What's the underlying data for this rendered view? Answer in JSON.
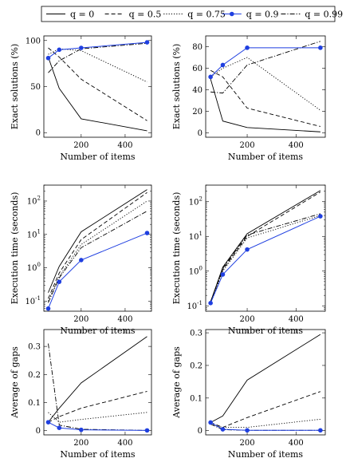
{
  "legend": {
    "placement": "top-center",
    "entries": [
      {
        "label": "q = 0",
        "style": "solid",
        "marker": "none",
        "color": "#000000"
      },
      {
        "label": "q = 0.5",
        "style": "dashed",
        "marker": "none",
        "color": "#000000"
      },
      {
        "label": "q = 0.75",
        "style": "dotted",
        "marker": "none",
        "color": "#000000"
      },
      {
        "label": "q = 0.9",
        "style": "solid",
        "marker": "circle",
        "color": "#1f3fe0"
      },
      {
        "label": "q = 0.99",
        "style": "dashdot",
        "marker": "none",
        "color": "#000000"
      }
    ]
  },
  "chart_data": [
    {
      "type": "line",
      "row": 0,
      "col": 0,
      "scale": "linear",
      "xlabel": "Number of items",
      "ylabel": "Exact solutions (%)",
      "xlim": [
        30,
        520
      ],
      "ylim": [
        -5,
        105
      ],
      "xticks": [
        200,
        400
      ],
      "xtick_labels": [
        "200",
        "400"
      ],
      "yticks": [
        0,
        50,
        100
      ],
      "ytick_labels": [
        "0",
        "50",
        "100"
      ],
      "x": [
        50,
        100,
        200,
        500
      ],
      "series": [
        {
          "name": "q = 0",
          "values": [
            82,
            48,
            15,
            2
          ]
        },
        {
          "name": "q = 0.5",
          "values": [
            92,
            82,
            58,
            13
          ]
        },
        {
          "name": "q = 0.75",
          "values": [
            85,
            91,
            89,
            55
          ]
        },
        {
          "name": "q = 0.9",
          "values": [
            81,
            90,
            92,
            98
          ]
        },
        {
          "name": "q = 0.99",
          "values": [
            65,
            78,
            91,
            97
          ]
        }
      ]
    },
    {
      "type": "line",
      "row": 0,
      "col": 1,
      "scale": "linear",
      "xlabel": "Number of items",
      "ylabel": "Exact solutions (%)",
      "xlim": [
        30,
        520
      ],
      "ylim": [
        -4,
        90
      ],
      "xticks": [
        200,
        400
      ],
      "xtick_labels": [
        "200",
        "400"
      ],
      "yticks": [
        0,
        20,
        40,
        60,
        80
      ],
      "ytick_labels": [
        "0",
        "20",
        "40",
        "60",
        "80"
      ],
      "x": [
        50,
        100,
        200,
        500
      ],
      "series": [
        {
          "name": "q = 0",
          "values": [
            50,
            11,
            5,
            1
          ]
        },
        {
          "name": "q = 0.5",
          "values": [
            58,
            52,
            23,
            6
          ]
        },
        {
          "name": "q = 0.75",
          "values": [
            52,
            60,
            70,
            21
          ]
        },
        {
          "name": "q = 0.9",
          "values": [
            52,
            63,
            79,
            79
          ]
        },
        {
          "name": "q = 0.99",
          "values": [
            38,
            37,
            63,
            85
          ]
        }
      ]
    },
    {
      "type": "line",
      "row": 1,
      "col": 0,
      "scale": "log",
      "xlabel": "Number of items",
      "ylabel": "Execution time (seconds)",
      "xlim": [
        30,
        520
      ],
      "ylim": [
        0.05,
        300
      ],
      "xticks": [
        200,
        400
      ],
      "xtick_labels": [
        "200",
        "400"
      ],
      "yticks": [
        0.1,
        1,
        10,
        100
      ],
      "ytick_labels": [
        "10^-1",
        "10^0",
        "10^1",
        "10^2"
      ],
      "x": [
        50,
        100,
        200,
        500
      ],
      "series": [
        {
          "name": "q = 0",
          "values": [
            0.18,
            1.1,
            12,
            220
          ]
        },
        {
          "name": "q = 0.5",
          "values": [
            0.12,
            0.7,
            7,
            180
          ]
        },
        {
          "name": "q = 0.75",
          "values": [
            0.1,
            0.55,
            5,
            100
          ]
        },
        {
          "name": "q = 0.9",
          "values": [
            0.06,
            0.38,
            1.7,
            11
          ]
        },
        {
          "name": "q = 0.99",
          "values": [
            0.09,
            0.5,
            4,
            50
          ]
        }
      ]
    },
    {
      "type": "line",
      "row": 1,
      "col": 1,
      "scale": "log",
      "xlabel": "Number of items",
      "ylabel": "Execution time (seconds)",
      "xlim": [
        30,
        520
      ],
      "ylim": [
        0.07,
        300
      ],
      "xticks": [
        200,
        400
      ],
      "xtick_labels": [
        "200",
        "400"
      ],
      "yticks": [
        0.1,
        1,
        10,
        100
      ],
      "ytick_labels": [
        "10^-1",
        "10^0",
        "10^1",
        "10^2"
      ],
      "x": [
        50,
        100,
        200,
        500
      ],
      "series": [
        {
          "name": "q = 0",
          "values": [
            0.13,
            1.3,
            12,
            210
          ]
        },
        {
          "name": "q = 0.5",
          "values": [
            0.13,
            1.1,
            10,
            190
          ]
        },
        {
          "name": "q = 0.75",
          "values": [
            0.12,
            1.0,
            9,
            40
          ]
        },
        {
          "name": "q = 0.9",
          "values": [
            0.12,
            0.8,
            4.2,
            38
          ]
        },
        {
          "name": "q = 0.99",
          "values": [
            0.13,
            1.2,
            11,
            45
          ]
        }
      ]
    },
    {
      "type": "line",
      "row": 2,
      "col": 0,
      "scale": "linear",
      "xlabel": "Number of items",
      "ylabel": "Average of gaps",
      "xlim": [
        30,
        520
      ],
      "ylim": [
        -0.015,
        0.36
      ],
      "xticks": [
        200,
        400
      ],
      "xtick_labels": [
        "200",
        "400"
      ],
      "yticks": [
        0,
        0.1,
        0.2,
        0.3
      ],
      "ytick_labels": [
        "0",
        "0.1",
        "0.2",
        "0.3"
      ],
      "x": [
        50,
        100,
        200,
        500
      ],
      "series": [
        {
          "name": "q = 0",
          "values": [
            0.03,
            0.08,
            0.17,
            0.335
          ]
        },
        {
          "name": "q = 0.5",
          "values": [
            0.03,
            0.05,
            0.08,
            0.14
          ]
        },
        {
          "name": "q = 0.75",
          "values": [
            0.065,
            0.03,
            0.04,
            0.065
          ]
        },
        {
          "name": "q = 0.9",
          "values": [
            0.03,
            0.01,
            0.003,
            0.001
          ]
        },
        {
          "name": "q = 0.99",
          "values": [
            0.31,
            0.02,
            0.005,
            0.001
          ]
        }
      ]
    },
    {
      "type": "line",
      "row": 2,
      "col": 1,
      "scale": "linear",
      "xlabel": "Number of items",
      "ylabel": "Average of gaps",
      "xlim": [
        30,
        520
      ],
      "ylim": [
        -0.013,
        0.31
      ],
      "xticks": [
        200,
        400
      ],
      "xtick_labels": [
        "200",
        "400"
      ],
      "yticks": [
        0,
        0.1,
        0.2,
        0.3
      ],
      "ytick_labels": [
        "0",
        "0.1",
        "0.2",
        "0.3"
      ],
      "x": [
        50,
        100,
        200,
        500
      ],
      "series": [
        {
          "name": "q = 0",
          "values": [
            0.025,
            0.045,
            0.155,
            0.295
          ]
        },
        {
          "name": "q = 0.5",
          "values": [
            0.025,
            0.01,
            0.04,
            0.12
          ]
        },
        {
          "name": "q = 0.75",
          "values": [
            0.02,
            0.01,
            0.01,
            0.035
          ]
        },
        {
          "name": "q = 0.9",
          "values": [
            0.025,
            0.004,
            0.001,
            0.001
          ]
        },
        {
          "name": "q = 0.99",
          "values": [
            0.02,
            0.003,
            0.001,
            0.001
          ]
        }
      ]
    }
  ]
}
